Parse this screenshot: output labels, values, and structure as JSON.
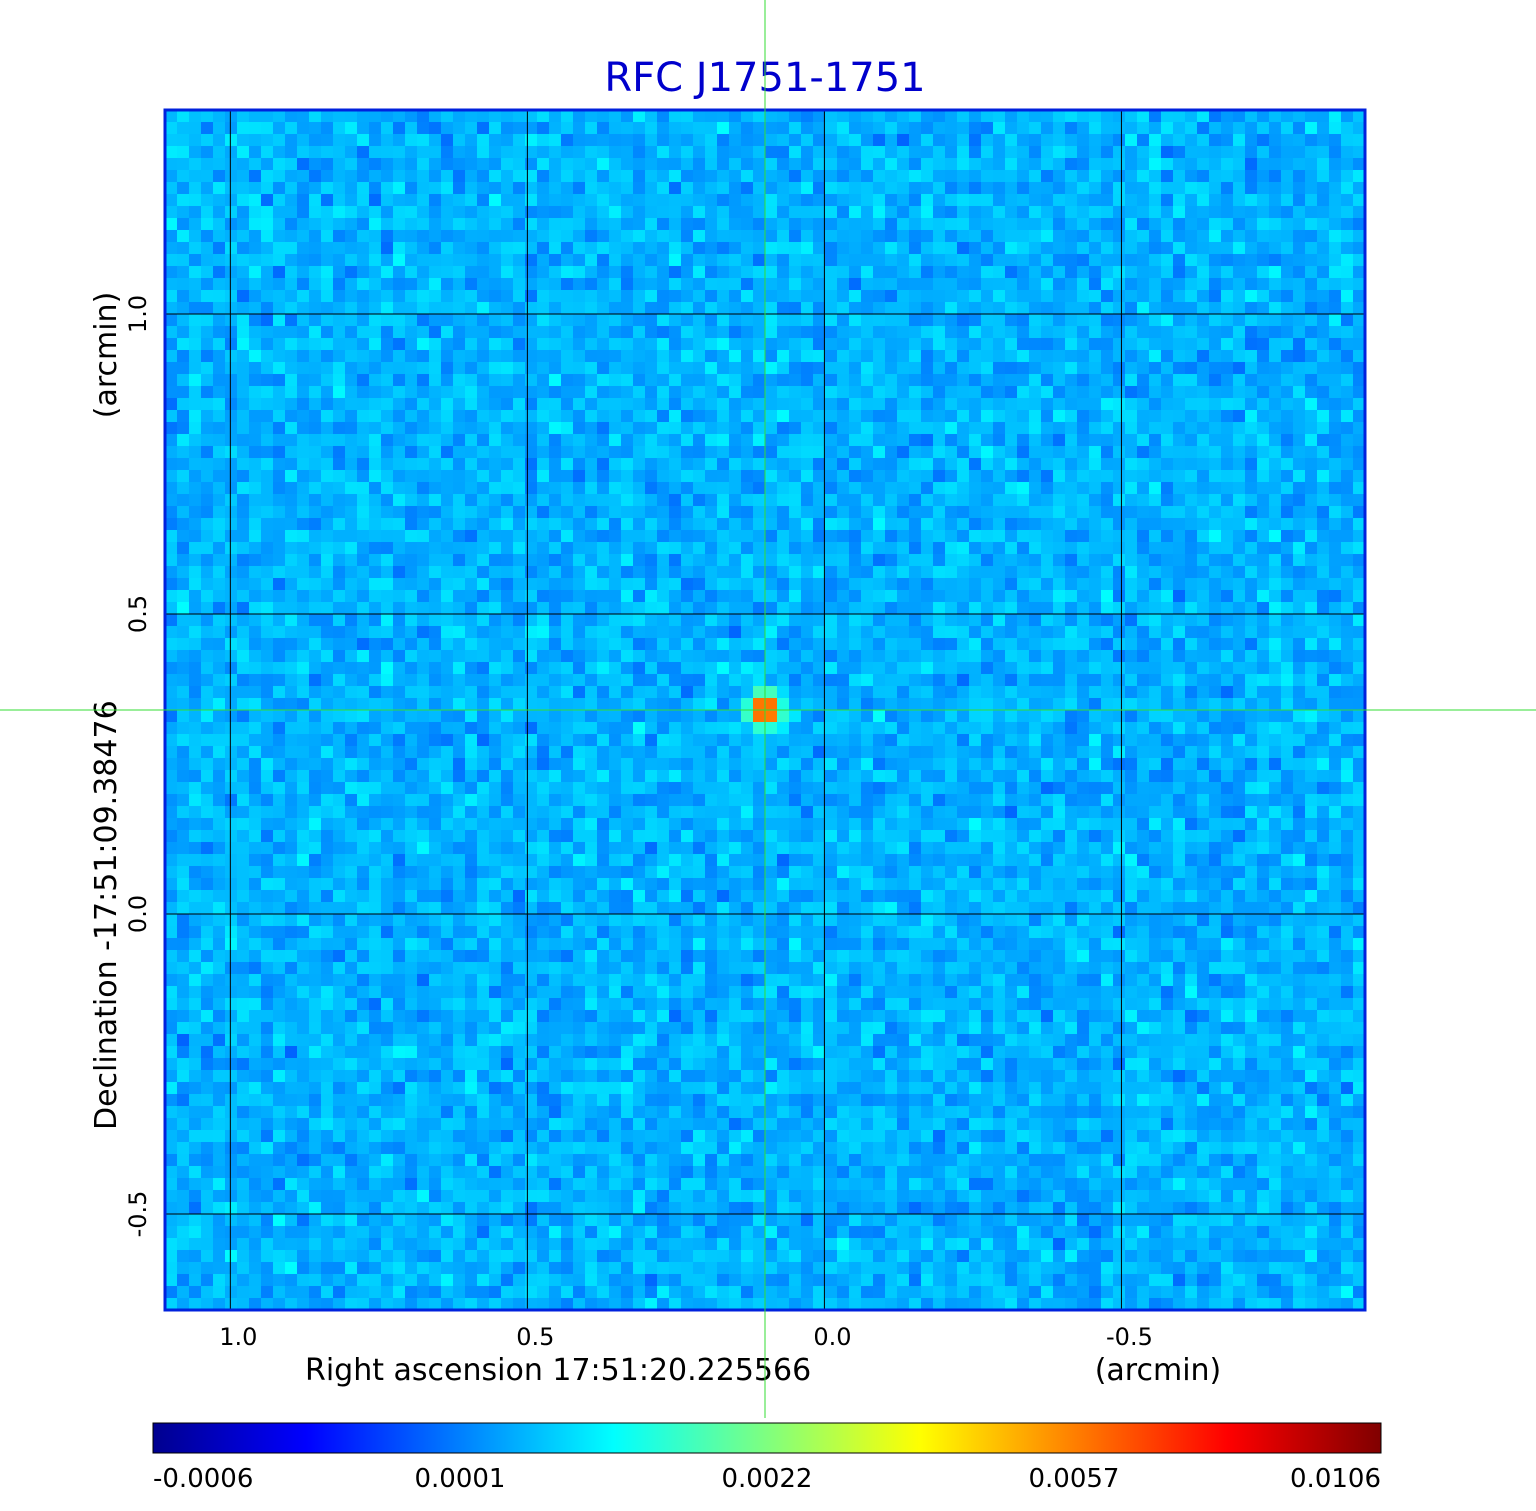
{
  "chart_data": {
    "type": "heatmap",
    "title": "RFC J1751-1751",
    "xlabel": "Right ascension  17:51:20.225566",
    "xunit": "(arcmin)",
    "ylabel": "Declination  -17:51:09.38476",
    "yunit": "(arcmin)",
    "xlim": [
      1.11,
      -0.91
    ],
    "ylim": [
      -0.66,
      1.34
    ],
    "x_ticks": [
      {
        "value": 1.0,
        "label": "1.0"
      },
      {
        "value": 0.5,
        "label": "0.5"
      },
      {
        "value": 0.0,
        "label": "0.0"
      },
      {
        "value": -0.5,
        "label": "-0.5"
      }
    ],
    "y_ticks": [
      {
        "value": 1.0,
        "label": "1.0"
      },
      {
        "value": 0.5,
        "label": "0.5"
      },
      {
        "value": 0.0,
        "label": "0.0"
      },
      {
        "value": -0.5,
        "label": "-0.5"
      }
    ],
    "grid": true,
    "crosshair": {
      "x": 0.1,
      "y": 0.34,
      "color": "#33dd33"
    },
    "source": {
      "x": 0.1,
      "y": 0.34,
      "peak": 0.0106
    },
    "colorbar": {
      "colormap": "jet",
      "ticks": [
        "-0.0006",
        "0.0001",
        "0.0022",
        "0.0057",
        "0.0106"
      ]
    },
    "noise_level": 0.0001,
    "value_range": [
      -0.0006,
      0.0106
    ]
  }
}
